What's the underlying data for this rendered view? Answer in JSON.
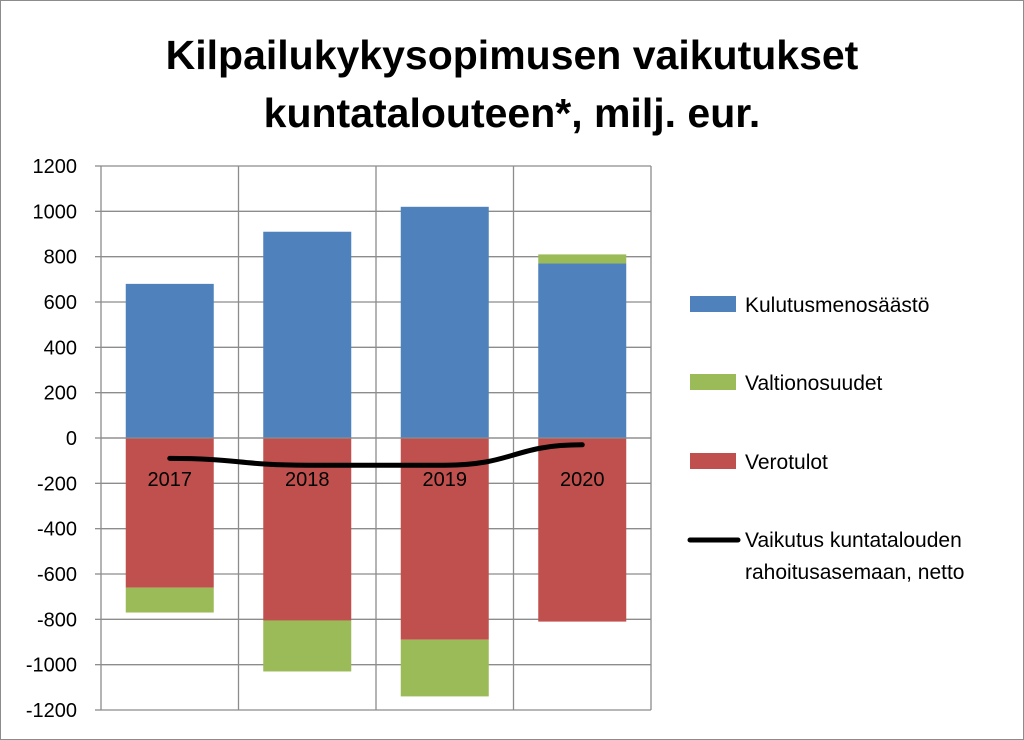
{
  "chart_data": {
    "type": "bar",
    "stacked": true,
    "title_line1": "Kilpailukykysopimusen vaikutukset",
    "title_line2": "kuntatalouteen*, milj. eur.",
    "categories": [
      "2017",
      "2018",
      "2019",
      "2020"
    ],
    "ylim": [
      -1200,
      1200
    ],
    "yticks": [
      1200,
      1000,
      800,
      600,
      400,
      200,
      0,
      -200,
      -400,
      -600,
      -800,
      -1000,
      -1200
    ],
    "grid": true,
    "legend_position": "right",
    "series": [
      {
        "name": "Kulutusmenosäästö",
        "kind": "bar",
        "color": "#4f81bd",
        "values": [
          680,
          910,
          1020,
          770
        ]
      },
      {
        "name": "Valtionosuudet",
        "kind": "bar",
        "color": "#9bbb59",
        "values": [
          -110,
          -225,
          -250,
          40
        ]
      },
      {
        "name": "Verotulot",
        "kind": "bar",
        "color": "#c0504d",
        "values": [
          -660,
          -805,
          -890,
          -810
        ]
      },
      {
        "name": "Vaikutus kuntatalouden rahoitusasemaan, netto",
        "kind": "line",
        "color": "#000000",
        "values": [
          -90,
          -120,
          -120,
          -30
        ]
      }
    ],
    "legend_labels": [
      [
        "Kulutusmenosäästö"
      ],
      [
        "Valtionosuudet"
      ],
      [
        "Verotulot"
      ],
      [
        "Vaikutus kuntatalouden",
        "rahoitusasemaan, netto"
      ]
    ]
  }
}
